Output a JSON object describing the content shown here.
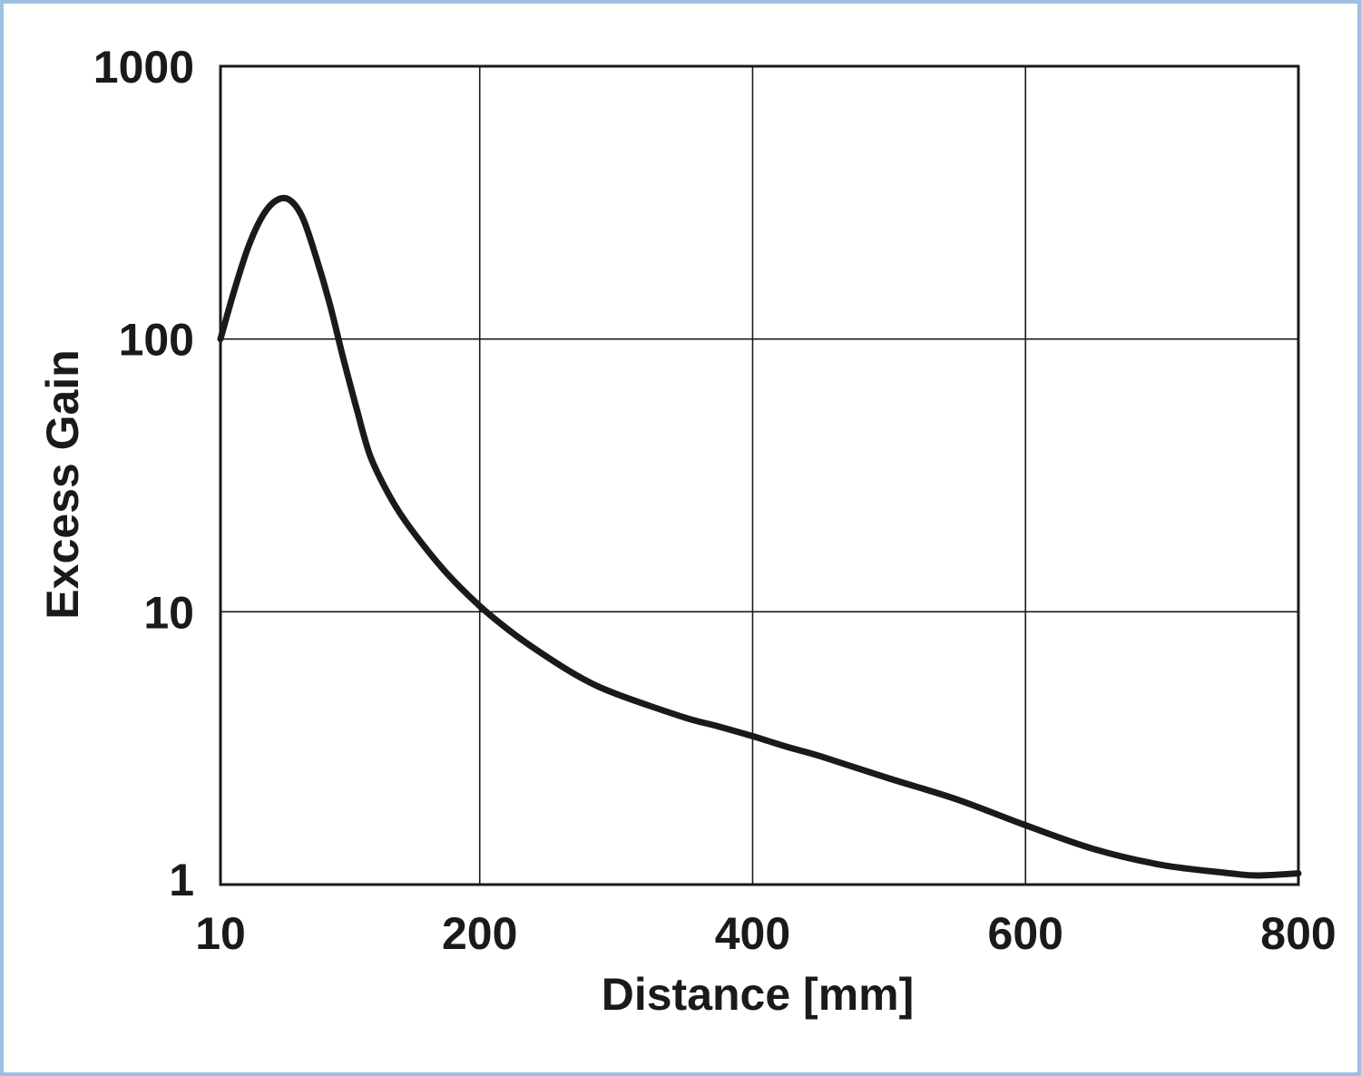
{
  "chart_data": {
    "type": "line",
    "title": "",
    "xlabel": "Distance [mm]",
    "ylabel": "Excess Gain",
    "x_scale": "linear",
    "y_scale": "log",
    "xlim": [
      10,
      800
    ],
    "ylim": [
      1,
      1000
    ],
    "x_ticks": [
      "10",
      "200",
      "400",
      "600",
      "800"
    ],
    "x_tick_values": [
      10,
      200,
      400,
      600,
      800
    ],
    "y_ticks": [
      "1000",
      "100",
      "10",
      "1"
    ],
    "y_tick_values": [
      1000,
      100,
      10,
      1
    ],
    "grid": true,
    "colors": {
      "line": "#1a1a1a",
      "grid": "#1a1a1a",
      "border": "#9dbfe3"
    },
    "series": [
      {
        "x": [
          10,
          20,
          30,
          40,
          50,
          60,
          70,
          80,
          90,
          100,
          110,
          120,
          135,
          150,
          175,
          200,
          225,
          250,
          275,
          300,
          350,
          375,
          400,
          425,
          450,
          500,
          550,
          600,
          650,
          700,
          750,
          770,
          800
        ],
        "y": [
          100,
          150,
          215,
          278,
          320,
          325,
          280,
          200,
          135,
          85,
          55,
          37,
          26,
          20,
          14,
          10.5,
          8.3,
          6.8,
          5.7,
          5.0,
          4.1,
          3.8,
          3.5,
          3.2,
          2.95,
          2.45,
          2.05,
          1.65,
          1.35,
          1.18,
          1.1,
          1.08,
          1.1
        ]
      }
    ]
  }
}
